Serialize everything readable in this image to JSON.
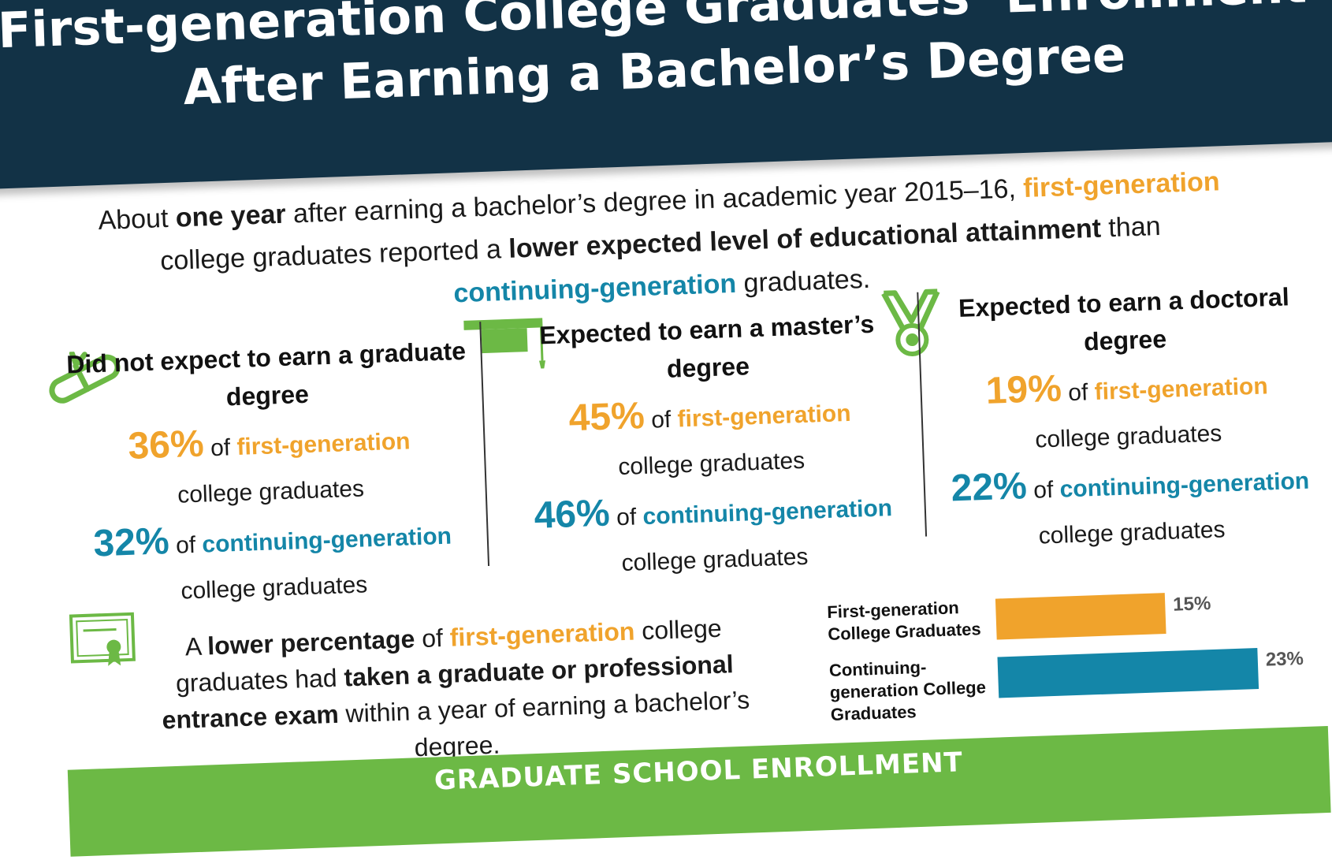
{
  "title": {
    "line1": "First-generation College Graduates’ Enrollment",
    "line2": "After Earning a Bachelor’s Degree"
  },
  "intro": {
    "t1": "About ",
    "b1": "one year",
    "t2": " after earning a bachelor’s degree in academic year 2015–16, ",
    "o1": "first-generation",
    "t3": " college graduates reported a ",
    "b2": "lower expected level of educational attainment",
    "t4": " than ",
    "c1": "continuing-generation",
    "t5": " graduates."
  },
  "columns": [
    {
      "heading": "Did not expect to earn a graduate degree",
      "icon": "diploma-scroll-icon",
      "first_pct": "36%",
      "of": " of ",
      "first_label": "first-generation",
      "first_tail": "college graduates",
      "cont_pct": "32%",
      "cont_label": "continuing-generation",
      "cont_tail": " college graduates"
    },
    {
      "heading": "Expected to earn a master’s degree",
      "icon": "graduation-cap-icon",
      "first_pct": "45%",
      "of": " of ",
      "first_label": "first-generation",
      "first_tail": "college graduates",
      "cont_pct": "46%",
      "cont_label": "continuing-generation",
      "cont_tail": " college graduates"
    },
    {
      "heading": "Expected to earn a doctoral degree",
      "icon": "medal-icon",
      "first_pct": "19%",
      "of": " of ",
      "first_label": "first-generation",
      "first_tail": "college graduates",
      "cont_pct": "22%",
      "cont_label": "continuing-generation",
      "cont_tail": " college graduates"
    }
  ],
  "exam": {
    "icon": "certificate-icon",
    "t1": "A ",
    "b1": "lower percentage",
    "t2": " of ",
    "o1": "first-generation",
    "t3": " college graduates had ",
    "b2": "taken a graduate or professional entrance exam",
    "t4": " within a year of earning a bachelor’s degree."
  },
  "chart_data": {
    "type": "bar",
    "categories": [
      "First-generation College Graduates",
      "Continuing-generation College Graduates"
    ],
    "values": [
      15,
      23
    ],
    "value_labels": [
      "15%",
      "23%"
    ],
    "colors": [
      "#f0a32c",
      "#1486a8"
    ],
    "xlim": [
      0,
      23
    ]
  },
  "bars": {
    "label1": "First-generation College Graduates",
    "label2": "Continuing-generation College Graduates"
  },
  "banner": {
    "text": "GRADUATE SCHOOL ENROLLMENT"
  },
  "colors": {
    "navy": "#123246",
    "orange": "#f0a32c",
    "teal": "#1486a8",
    "green": "#6cb945"
  }
}
